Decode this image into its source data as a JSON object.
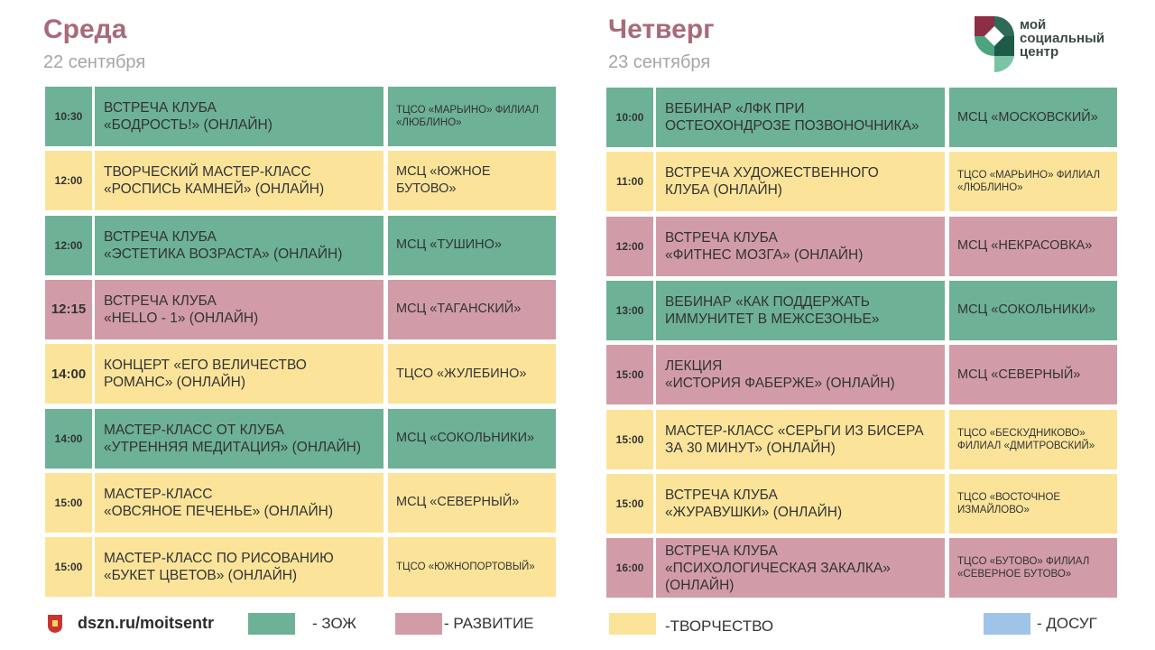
{
  "left": {
    "day": "Среда",
    "date": "22 сентября",
    "rows": [
      {
        "time": "10:30",
        "event": "ВСТРЕЧА КЛУБА\n«БОДРОСТЬ!» (ОНЛАЙН)",
        "place": "ТЦСО «МАРЬИНО» ФИЛИАЛ\n«ЛЮБЛИНО»",
        "color": "green"
      },
      {
        "time": "12:00",
        "event": "ТВОРЧЕСКИЙ МАСТЕР-КЛАСС\n«РОСПИСЬ КАМНЕЙ» (ОНЛАЙН)",
        "place": "МСЦ «ЮЖНОЕ\nБУТОВО»",
        "color": "yellow"
      },
      {
        "time": "12:00",
        "event": "ВСТРЕЧА КЛУБА\n«ЭСТЕТИКА ВОЗРАСТА» (ОНЛАЙН)",
        "place": "МСЦ «ТУШИНО»",
        "color": "green"
      },
      {
        "time": "12:15",
        "event": "ВСТРЕЧА КЛУБА\n«HELLO - 1» (ОНЛАЙН)",
        "place": "МСЦ «ТАГАНСКИЙ»",
        "color": "pink"
      },
      {
        "time": "14:00",
        "event": "КОНЦЕРТ «ЕГО ВЕЛИЧЕСТВО\nРОМАНС» (ОНЛАЙН)",
        "place": "ТЦСО «ЖУЛЕБИНО»",
        "color": "yellow"
      },
      {
        "time": "14:00",
        "event": "МАСТЕР-КЛАСС ОТ КЛУБА\n«УТРЕННЯЯ МЕДИТАЦИЯ» (ОНЛАЙН)",
        "place": "МСЦ «СОКОЛЬНИКИ»",
        "color": "green"
      },
      {
        "time": "15:00",
        "event": "МАСТЕР-КЛАСС\n«ОВСЯНОЕ ПЕЧЕНЬЕ» (ОНЛАЙН)",
        "place": "МСЦ «СЕВЕРНЫЙ»",
        "color": "yellow"
      },
      {
        "time": "15:00",
        "event": "МАСТЕР-КЛАСС ПО РИСОВАНИЮ\n«БУКЕТ ЦВЕТОВ» (ОНЛАЙН)",
        "place": "ТЦСО «ЮЖНОПОРТОВЫЙ»",
        "color": "yellow"
      }
    ]
  },
  "right": {
    "day": "Четверг",
    "date": "23 сентября",
    "rows": [
      {
        "time": "10:00",
        "event": "ВЕБИНАР «ЛФК ПРИ\nОСТЕОХОНДРОЗЕ ПОЗВОНОЧНИКА»",
        "place": "МСЦ «МОСКОВСКИЙ»",
        "color": "green"
      },
      {
        "time": "11:00",
        "event": "ВСТРЕЧА ХУДОЖЕСТВЕННОГО\nКЛУБА (ОНЛАЙН)",
        "place": "ТЦСО «МАРЬИНО» ФИЛИАЛ\n«ЛЮБЛИНО»",
        "color": "yellow"
      },
      {
        "time": "12:00",
        "event": "ВСТРЕЧА КЛУБА\n«ФИТНЕС МОЗГА» (ОНЛАЙН)",
        "place": "МСЦ «НЕКРАСОВКА»",
        "color": "pink"
      },
      {
        "time": "13:00",
        "event": "ВЕБИНАР «КАК ПОДДЕРЖАТЬ\nИММУНИТЕТ В МЕЖСЕЗОНЬЕ»",
        "place": "МСЦ «СОКОЛЬНИКИ»",
        "color": "green"
      },
      {
        "time": "15:00",
        "event": "ЛЕКЦИЯ\n«ИСТОРИЯ ФАБЕРЖЕ» (ОНЛАЙН)",
        "place": "МСЦ «СЕВЕРНЫЙ»",
        "color": "pink"
      },
      {
        "time": "15:00",
        "event": "МАСТЕР-КЛАСС «СЕРЬГИ ИЗ БИСЕРА\nЗА 30 МИНУТ» (ОНЛАЙН)",
        "place": "ТЦСО «БЕСКУДНИКОВО»\nФИЛИАЛ «ДМИТРОВСКИЙ»",
        "color": "yellow"
      },
      {
        "time": "15:00",
        "event": "ВСТРЕЧА КЛУБА\n«ЖУРАВУШКИ» (ОНЛАЙН)",
        "place": "ТЦСО «ВОСТОЧНОЕ\nИЗМАЙЛОВО»",
        "color": "yellow"
      },
      {
        "time": "16:00",
        "event": "ВСТРЕЧА КЛУБА\n«ПСИХОЛОГИЧЕСКАЯ ЗАКАЛКА»\n(ОНЛАЙН)",
        "place": "ТЦСО «БУТОВО» ФИЛИАЛ\n«СЕВЕРНОЕ БУТОВО»",
        "color": "pink"
      }
    ]
  },
  "logo": {
    "text": "мой\nсоциальный\nцентр"
  },
  "footer": {
    "url": "dszn.ru/moitsentr",
    "legend": [
      {
        "label": "- ЗОЖ",
        "color": "#6db197"
      },
      {
        "label": "- РАЗВИТИЕ",
        "color": "#d19ca8"
      },
      {
        "label": "-ТВОРЧЕСТВО",
        "color": "#fbe49a"
      },
      {
        "label": "- ДОСУГ",
        "color": "#9fc4e8"
      }
    ]
  }
}
